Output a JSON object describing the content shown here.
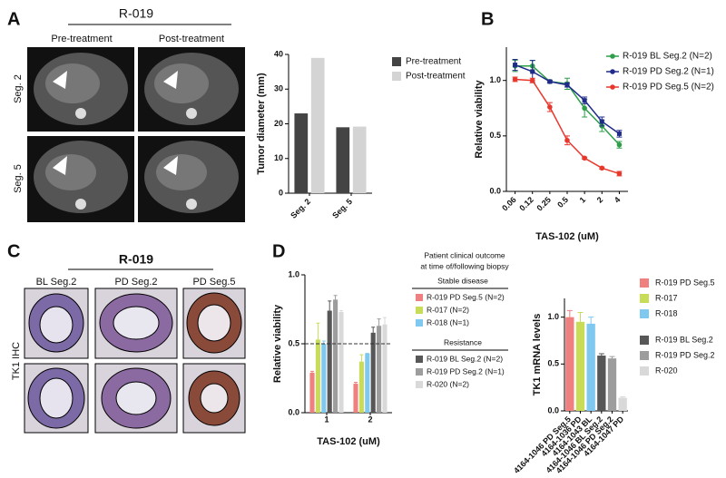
{
  "panel_labels": [
    "A",
    "B",
    "C",
    "D"
  ],
  "panel_a": {
    "title": "R-019",
    "columns": [
      "Pre-treatment",
      "Post-treatment"
    ],
    "rows": [
      "Seg. 2",
      "Seg. 5"
    ]
  },
  "panel_c": {
    "title": "R-019",
    "columns": [
      "BL Seg.2",
      "PD Seg.2",
      "PD Seg.5"
    ],
    "row_label": "TK1 IHC"
  },
  "chart_data": [
    {
      "type": "bar",
      "ylabel": "Tumor diameter (mm)",
      "categories": [
        "Seg. 2",
        "Seg. 5"
      ],
      "series": [
        {
          "name": "Pre-treatment",
          "color": "#444444",
          "values": [
            23,
            19
          ]
        },
        {
          "name": "Post-treatment",
          "color": "#d4d4d4",
          "values": [
            39,
            19.2
          ]
        }
      ],
      "ylim": [
        0,
        40
      ],
      "yticks": [
        0,
        10,
        20,
        30,
        40
      ]
    },
    {
      "type": "line",
      "xlabel": "TAS-102 (uM)",
      "ylabel": "Relative viability",
      "categories": [
        "0.06",
        "0.12",
        "0.25",
        "0.5",
        "1",
        "2",
        "4"
      ],
      "series": [
        {
          "name": "R-019 BL Seg.2 (N=2)",
          "color": "#2e9e4a",
          "values": [
            1.13,
            1.13,
            0.99,
            0.97,
            0.75,
            0.59,
            0.42
          ],
          "errors": [
            0.05,
            0.05,
            0.01,
            0.05,
            0.08,
            0.05,
            0.03
          ]
        },
        {
          "name": "R-019 PD Seg.2 (N=1)",
          "color": "#1f2a8a",
          "values": [
            1.14,
            1.08,
            0.99,
            0.96,
            0.82,
            0.63,
            0.52
          ],
          "errors": [
            0.05,
            0.1,
            0.01,
            0.02,
            0.03,
            0.04,
            0.03
          ]
        },
        {
          "name": "R-019 PD Seg.5 (N=2)",
          "color": "#e8382d",
          "values": [
            1.01,
            1.0,
            0.76,
            0.46,
            0.3,
            0.21,
            0.16
          ],
          "errors": [
            0.02,
            0.02,
            0.04,
            0.04,
            0.01,
            0.01,
            0.02
          ]
        }
      ],
      "ylim": [
        0,
        1.3
      ],
      "yticks": [
        {
          "value": 0,
          "label": "0.0"
        },
        {
          "value": 0.5,
          "label": "0.5"
        },
        {
          "value": 1,
          "label": "1.0"
        }
      ]
    },
    {
      "type": "bar",
      "xlabel": "TAS-102 (uM)",
      "ylabel": "Relative viability",
      "categories": [
        "1",
        "2"
      ],
      "legend_title": [
        "Patient clinical outcome",
        "at time of/following biopsy"
      ],
      "legend_groups": [
        "Stable disease",
        "Resistance"
      ],
      "series": [
        {
          "name": "R-019 PD Seg.5 (N=2)",
          "color": "#f07f7f",
          "values": [
            0.29,
            0.21
          ],
          "errors": [
            0.01,
            0.01
          ]
        },
        {
          "name": "R-017 (N=2)",
          "color": "#c9dc58",
          "values": [
            0.53,
            0.37
          ],
          "errors": [
            0.12,
            0.05
          ]
        },
        {
          "name": "R-018 (N=1)",
          "color": "#7fc8ef",
          "values": [
            0.5,
            0.43
          ],
          "errors": [
            0.02,
            0.0
          ]
        },
        {
          "name": "R-019 BL Seg.2 (N=2)",
          "color": "#575757",
          "values": [
            0.74,
            0.58
          ],
          "errors": [
            0.07,
            0.04
          ]
        },
        {
          "name": "R-019 PD Seg.2 (N=1)",
          "color": "#9d9d9d",
          "values": [
            0.82,
            0.63
          ],
          "errors": [
            0.03,
            0.05
          ]
        },
        {
          "name": "R-020 (N=2)",
          "color": "#d9d9d9",
          "values": [
            0.73,
            0.64
          ],
          "errors": [
            0.01,
            0.05
          ]
        }
      ],
      "reference_line": 0.5,
      "ylim": [
        0,
        1.0
      ],
      "yticks": [
        {
          "value": 0,
          "label": "0.0"
        },
        {
          "value": 0.5,
          "label": "0.5"
        },
        {
          "value": 1,
          "label": "1.0"
        }
      ]
    },
    {
      "type": "bar",
      "ylabel": "TK1 mRNA levels",
      "categories": [
        "4164-1046 PD Seg.5",
        "4164-1036 PD",
        "4164-1043 BL",
        "4164-1046 BL Seg.2",
        "4164-1046 PD Seg.2",
        "4164-1047 PD"
      ],
      "values": [
        1.0,
        0.95,
        0.93,
        0.59,
        0.56,
        0.14
      ],
      "errors": [
        0.07,
        0.1,
        0.07,
        0.02,
        0.02,
        0.01
      ],
      "colors": [
        "#f07f7f",
        "#c9dc58",
        "#7fc8ef",
        "#575757",
        "#9d9d9d",
        "#d9d9d9"
      ],
      "legend": [
        "R-019 PD Seg.5",
        "R-017",
        "R-018",
        "R-019 BL Seg.2",
        "R-019 PD Seg.2",
        "R-020"
      ],
      "ylim": [
        0,
        1.2
      ],
      "yticks": [
        {
          "value": 0,
          "label": "0.0"
        },
        {
          "value": 0.5,
          "label": "0.5"
        },
        {
          "value": 1,
          "label": "1.0"
        }
      ]
    }
  ]
}
